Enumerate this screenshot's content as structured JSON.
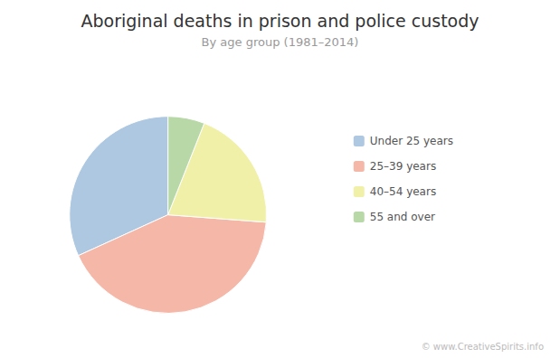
{
  "chart_data": {
    "type": "pie",
    "title": "Aboriginal deaths in prison and police custody",
    "subtitle": "By age group (1981–2014)",
    "categories": [
      "Under 25 years",
      "25–39 years",
      "40–54 years",
      "55 and over"
    ],
    "values": [
      31.8,
      42.0,
      20.2,
      6.0
    ],
    "colors": [
      "#adc8e0",
      "#f5b8a8",
      "#f0f0a8",
      "#b8d8a8"
    ],
    "legend": "right",
    "data_labels": false,
    "annotations": [
      "© www.CreativeSpirits.info"
    ]
  }
}
